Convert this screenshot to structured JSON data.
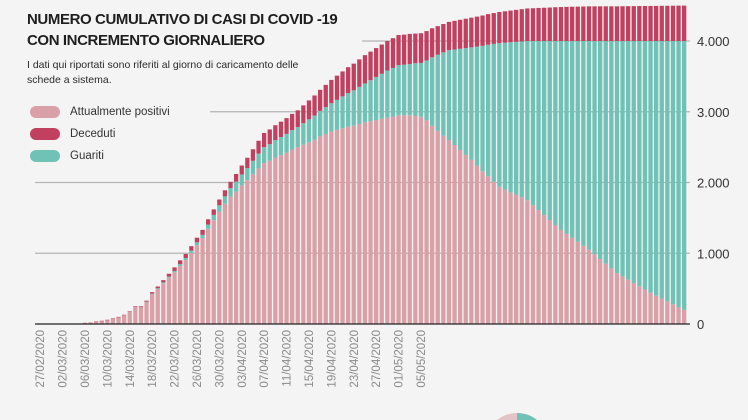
{
  "title_lines": [
    "NUMERO CUMULATIVO DI CASI DI COVID -19",
    "CON INCREMENTO GIORNALIERO"
  ],
  "subtitle": "I dati qui riportati sono riferiti al giorno di caricamento delle schede a sistema.",
  "chart_data": {
    "type": "bar",
    "stacked": true,
    "title": "NUMERO CUMULATIVO DI CASI DI COVID -19 CON INCREMENTO GIORNALIERO",
    "first_date": "27/02/2020",
    "x_tick_labels": [
      "27/02/2020",
      "02/03/2020",
      "06/03/2020",
      "10/03/2020",
      "14/03/2020",
      "18/03/2020",
      "22/03/2020",
      "26/03/2020",
      "30/03/2020",
      "03/04/2020",
      "07/04/2020",
      "11/04/2020",
      "15/04/2020",
      "19/04/2020",
      "23/04/2020",
      "27/04/2020",
      "01/05/2020",
      "05/05/2020"
    ],
    "y_ticks": [
      0,
      1000,
      2000,
      3000,
      4000
    ],
    "y_tick_labels": [
      "0",
      "1.000",
      "2.000",
      "3.000",
      "4.000"
    ],
    "ylim": [
      0,
      4600
    ],
    "legend_position": "top-left",
    "grid": true,
    "series": [
      {
        "name": "Attualmente positivi",
        "color": "#d9a1a7",
        "values": [
          0,
          0,
          0,
          0,
          0,
          0,
          0,
          0,
          20,
          25,
          34,
          44,
          58,
          77,
          96,
          125,
          172,
          240,
          238,
          310,
          422,
          495,
          576,
          655,
          730,
          820,
          902,
          1003,
          1114,
          1215,
          1346,
          1467,
          1588,
          1699,
          1800,
          1874,
          1959,
          2033,
          2117,
          2200,
          2275,
          2309,
          2353,
          2387,
          2422,
          2466,
          2500,
          2534,
          2568,
          2602,
          2652,
          2686,
          2720,
          2743,
          2767,
          2790,
          2803,
          2827,
          2850,
          2867,
          2883,
          2900,
          2917,
          2933,
          2950,
          2950,
          2950,
          2940,
          2930,
          2880,
          2800,
          2730,
          2660,
          2600,
          2530,
          2460,
          2390,
          2320,
          2240,
          2160,
          2090,
          2010,
          1940,
          1900,
          1860,
          1830,
          1790,
          1750,
          1680,
          1610,
          1540,
          1470,
          1400,
          1330,
          1274,
          1218,
          1162,
          1106,
          1050,
          984,
          918,
          852,
          786,
          720,
          673,
          627,
          580,
          533,
          487,
          440,
          400,
          360,
          320,
          280,
          240,
          200
        ]
      },
      {
        "name": "Guariti",
        "color": "#6fc2b5",
        "values": [
          0,
          0,
          0,
          0,
          0,
          0,
          0,
          0,
          0,
          0,
          0,
          0,
          0,
          0,
          0,
          0,
          0,
          0,
          0,
          5,
          8,
          10,
          12,
          15,
          20,
          25,
          30,
          35,
          40,
          45,
          60,
          75,
          90,
          105,
          120,
          138,
          155,
          172,
          190,
          208,
          225,
          235,
          245,
          255,
          265,
          275,
          285,
          305,
          325,
          345,
          360,
          380,
          400,
          425,
          450,
          475,
          500,
          525,
          550,
          579,
          609,
          637,
          666,
          686,
          710,
          715,
          725,
          745,
          760,
          845,
          970,
          1075,
          1180,
          1270,
          1350,
          1430,
          1510,
          1590,
          1681,
          1772,
          1858,
          1949,
          2030,
          2076,
          2122,
          2158,
          2204,
          2250,
          2320,
          2390,
          2460,
          2530,
          2600,
          2670,
          2726,
          2782,
          2838,
          2894,
          2950,
          3016,
          3082,
          3148,
          3214,
          3280,
          3327,
          3373,
          3420,
          3467,
          3513,
          3560,
          3600,
          3640,
          3680,
          3720,
          3760,
          3800
        ]
      },
      {
        "name": "Deceduti",
        "color": "#c2405f",
        "values": [
          0,
          0,
          0,
          0,
          0,
          0,
          0,
          0,
          0,
          0,
          1,
          1,
          2,
          3,
          4,
          5,
          8,
          10,
          12,
          15,
          20,
          25,
          32,
          40,
          50,
          55,
          58,
          62,
          66,
          70,
          74,
          78,
          82,
          86,
          90,
          108,
          126,
          145,
          163,
          182,
          200,
          206,
          212,
          218,
          223,
          229,
          235,
          251,
          267,
          283,
          298,
          314,
          330,
          342,
          353,
          365,
          377,
          388,
          400,
          404,
          408,
          413,
          417,
          421,
          425,
          425,
          425,
          420,
          420,
          415,
          410,
          405,
          400,
          400,
          405,
          410,
          415,
          420,
          424,
          428,
          432,
          436,
          440,
          444,
          448,
          452,
          456,
          460,
          463,
          467,
          470,
          473,
          477,
          480,
          482,
          484,
          486,
          488,
          490,
          490,
          490,
          490,
          490,
          490,
          491,
          492,
          493,
          494,
          495,
          495,
          496,
          497,
          498,
          499,
          500,
          500
        ]
      }
    ]
  }
}
